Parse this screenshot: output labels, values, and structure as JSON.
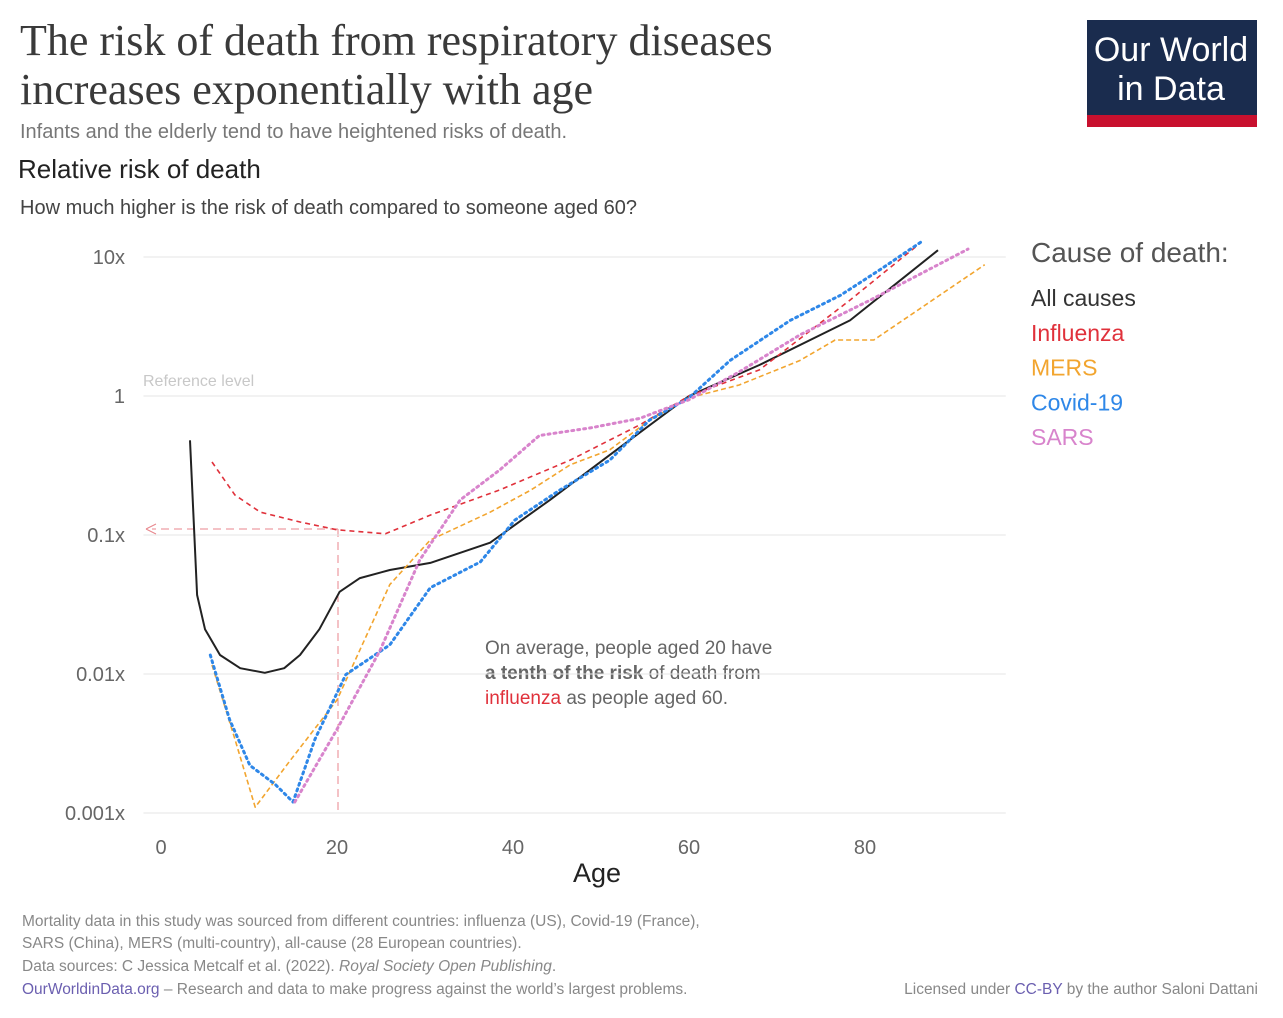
{
  "logo": [
    "Our World",
    "in Data"
  ],
  "chart_data": {
    "type": "line",
    "title": [
      "The risk of death from respiratory diseases",
      "increases exponentially with age"
    ],
    "subtitle": "Infants and the elderly tend to have heightened risks of death.",
    "heading": "Relative risk of death",
    "question": "How much higher is the risk of death compared to someone aged 60?",
    "x_label": "Age",
    "xlim": [
      -2,
      96
    ],
    "xticks": [
      0,
      20,
      40,
      60,
      80
    ],
    "ylim": [
      0.001,
      10
    ],
    "log_y": true,
    "grid": true,
    "yticks": [
      {
        "value": 10,
        "label": "10x"
      },
      1,
      {
        "value": 0.1,
        "label": "0.1x"
      },
      {
        "value": 0.01,
        "label": "0.01x"
      },
      {
        "value": 0.001,
        "label": "0.001x"
      }
    ],
    "legend_title": "Cause of death:",
    "legend_position": "right",
    "reference_label": "Reference level",
    "annotation": [
      "On average, people aged 20 have",
      "a tenth of the risk",
      " of death from",
      "influenza",
      " as people aged 60."
    ],
    "series": [
      {
        "name": "All causes",
        "color": "#222222",
        "dash": "none",
        "x": [
          3.3,
          4.1,
          5,
          6.7,
          9,
          11.8,
          14,
          15.8,
          18,
          20.3,
          22.6,
          26,
          30.6,
          37.4,
          44.2,
          51,
          60,
          68,
          78.3,
          88.3
        ],
        "values": [
          0.48,
          0.037,
          0.021,
          0.0137,
          0.011,
          0.0102,
          0.011,
          0.0137,
          0.021,
          0.039,
          0.049,
          0.056,
          0.063,
          0.088,
          0.179,
          0.377,
          1,
          1.67,
          3.5,
          11.2
        ]
      },
      {
        "name": "Influenza",
        "color": "#e0313b",
        "dash": "5,4",
        "x": [
          5.8,
          8.4,
          11.3,
          15.8,
          20,
          25.5,
          30.6,
          38.5,
          46.5,
          54.4,
          60,
          68,
          78.3,
          86.3
        ],
        "values": [
          0.335,
          0.194,
          0.146,
          0.124,
          0.109,
          0.102,
          0.139,
          0.211,
          0.346,
          0.62,
          1,
          1.54,
          4.9,
          12.6
        ]
      },
      {
        "name": "MERS",
        "color": "#f2a52f",
        "dash": "5,3",
        "x": [
          5.8,
          8.4,
          10.7,
          14.7,
          20,
          26,
          30.6,
          37.4,
          42,
          46.5,
          51,
          55.5,
          60,
          65.7,
          72.6,
          76.6,
          81,
          93.6
        ],
        "values": [
          0.0116,
          0.0034,
          0.0011,
          0.0024,
          0.0065,
          0.044,
          0.092,
          0.146,
          0.21,
          0.32,
          0.41,
          0.67,
          0.97,
          1.2,
          1.8,
          2.53,
          2.53,
          8.8
        ]
      },
      {
        "name": "Covid-19",
        "color": "#2e87e8",
        "dash": "2,4",
        "x": [
          5.6,
          7.8,
          10.1,
          13,
          15,
          17.5,
          21,
          26,
          30.6,
          36.3,
          40.2,
          45.3,
          51,
          55.5,
          60,
          64.7,
          71.5,
          77.2,
          81.7,
          86.5
        ],
        "values": [
          0.0137,
          0.0047,
          0.0022,
          0.0016,
          0.0012,
          0.0034,
          0.0099,
          0.0162,
          0.0418,
          0.064,
          0.128,
          0.21,
          0.346,
          0.67,
          0.97,
          1.81,
          3.5,
          5.3,
          8.1,
          13
        ]
      },
      {
        "name": "SARS",
        "color": "#d884cc",
        "dash": "2,4",
        "x": [
          15.2,
          20,
          24.9,
          29.4,
          34,
          38.5,
          43,
          48.8,
          54.4,
          60,
          65.7,
          72.6,
          80.6,
          91.7
        ],
        "values": [
          0.0012,
          0.004,
          0.0148,
          0.066,
          0.179,
          0.294,
          0.52,
          0.59,
          0.69,
          0.94,
          1.49,
          2.75,
          4.9,
          11.4
        ]
      }
    ]
  },
  "footer": {
    "notes": [
      "Mortality data in this study was sourced from different countries: influenza (US), Covid-19 (France),",
      "SARS (China), MERS (multi-country), all-cause (28 European countries)."
    ],
    "source": [
      "Data sources: C Jessica Metcalf et al. (2022). ",
      "Royal Society Open Publishing",
      "."
    ],
    "site": "OurWorldinData.org",
    "tagline": " – Research and data to make progress against the world’s largest problems.",
    "license": [
      "Licensed under ",
      "CC-BY",
      " by the author Saloni Dattani"
    ]
  }
}
